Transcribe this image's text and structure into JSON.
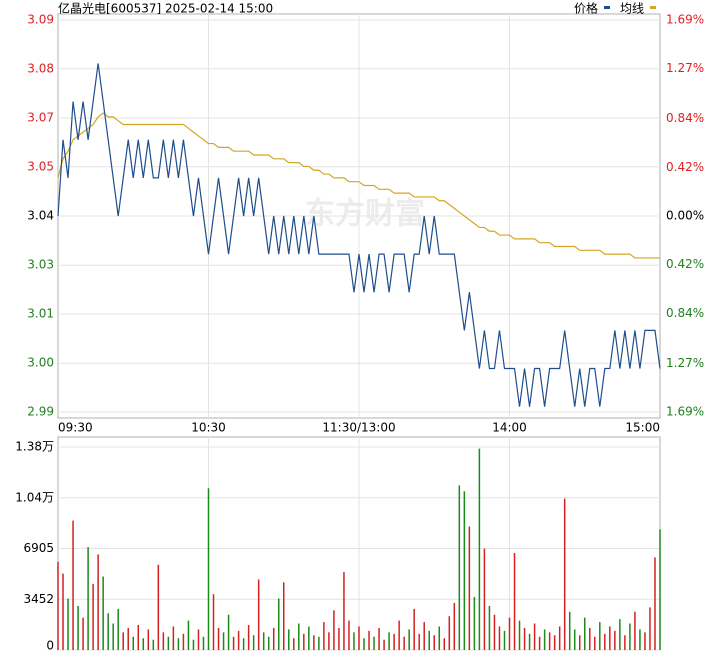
{
  "chart_data": [
    {
      "type": "line",
      "title": "亿晶光电[600537] 2025-02-14 15:00",
      "watermark": "东方财富",
      "xlim": [
        0,
        120
      ],
      "xticks": [
        {
          "value": 0,
          "label": "09:30"
        },
        {
          "value": 30,
          "label": "10:30"
        },
        {
          "value": 60,
          "label": "11:30/13:00"
        },
        {
          "value": 90,
          "label": "14:00"
        },
        {
          "value": 120,
          "label": "15:00"
        }
      ],
      "ylim": [
        2.9886,
        3.0914
      ],
      "yticks": [
        {
          "value": 2.9886,
          "label": "2.99"
        },
        {
          "value": 3.0014,
          "label": "3.00"
        },
        {
          "value": 3.0143,
          "label": "3.01"
        },
        {
          "value": 3.0271,
          "label": "3.03"
        },
        {
          "value": 3.04,
          "label": "3.04"
        },
        {
          "value": 3.0529,
          "label": "3.05"
        },
        {
          "value": 3.0657,
          "label": "3.07"
        },
        {
          "value": 3.0786,
          "label": "3.08"
        },
        {
          "value": 3.0914,
          "label": "3.09"
        }
      ],
      "y2lim": [
        -1.69,
        1.69
      ],
      "y2ticks": [
        {
          "value": -1.69,
          "label": "1.69%"
        },
        {
          "value": -1.27,
          "label": "1.27%"
        },
        {
          "value": -0.84,
          "label": "0.84%"
        },
        {
          "value": -0.42,
          "label": "0.42%"
        },
        {
          "value": 0,
          "label": "0.00%"
        },
        {
          "value": 0.42,
          "label": "0.42%"
        },
        {
          "value": 0.84,
          "label": "0.84%"
        },
        {
          "value": 1.27,
          "label": "1.27%"
        },
        {
          "value": 1.69,
          "label": "1.69%"
        }
      ],
      "up_color": "#e02020",
      "down_color": "#208020",
      "flat_color": "#000000",
      "grid": true,
      "legend": "top-right",
      "series": [
        {
          "name": "价格",
          "color": "#1f4e8c",
          "values": [
            3.04,
            3.06,
            3.05,
            3.07,
            3.06,
            3.07,
            3.06,
            3.07,
            3.08,
            3.07,
            3.06,
            3.05,
            3.04,
            3.05,
            3.06,
            3.05,
            3.06,
            3.05,
            3.06,
            3.05,
            3.05,
            3.06,
            3.05,
            3.06,
            3.05,
            3.06,
            3.05,
            3.04,
            3.05,
            3.04,
            3.03,
            3.04,
            3.05,
            3.04,
            3.03,
            3.04,
            3.05,
            3.04,
            3.05,
            3.04,
            3.05,
            3.04,
            3.03,
            3.04,
            3.03,
            3.04,
            3.03,
            3.04,
            3.03,
            3.04,
            3.03,
            3.04,
            3.03,
            3.03,
            3.03,
            3.03,
            3.03,
            3.03,
            3.03,
            3.02,
            3.03,
            3.02,
            3.03,
            3.02,
            3.03,
            3.03,
            3.02,
            3.03,
            3.03,
            3.03,
            3.02,
            3.03,
            3.03,
            3.04,
            3.03,
            3.04,
            3.03,
            3.03,
            3.03,
            3.03,
            3.02,
            3.01,
            3.02,
            3.01,
            3.0,
            3.01,
            3.0,
            3.0,
            3.01,
            3.0,
            3.0,
            3.0,
            2.99,
            3.0,
            2.99,
            3.0,
            3.0,
            2.99,
            3.0,
            3.0,
            3.0,
            3.01,
            3.0,
            2.99,
            3.0,
            2.99,
            3.0,
            3.0,
            2.99,
            3.0,
            3.0,
            3.01,
            3.0,
            3.01,
            3.0,
            3.01,
            3.0,
            3.01,
            3.01,
            3.01,
            3.0
          ]
        },
        {
          "name": "均线",
          "color": "#d4a520",
          "values": [
            3.05,
            3.055,
            3.057,
            3.06,
            3.061,
            3.062,
            3.063,
            3.064,
            3.066,
            3.067,
            3.066,
            3.066,
            3.065,
            3.064,
            3.064,
            3.064,
            3.064,
            3.064,
            3.064,
            3.064,
            3.064,
            3.064,
            3.064,
            3.064,
            3.064,
            3.064,
            3.063,
            3.062,
            3.061,
            3.06,
            3.059,
            3.059,
            3.058,
            3.058,
            3.058,
            3.057,
            3.057,
            3.057,
            3.057,
            3.056,
            3.056,
            3.056,
            3.056,
            3.055,
            3.055,
            3.055,
            3.054,
            3.054,
            3.054,
            3.053,
            3.053,
            3.052,
            3.052,
            3.051,
            3.051,
            3.05,
            3.05,
            3.05,
            3.049,
            3.049,
            3.049,
            3.048,
            3.048,
            3.048,
            3.047,
            3.047,
            3.047,
            3.046,
            3.046,
            3.046,
            3.046,
            3.045,
            3.045,
            3.045,
            3.045,
            3.045,
            3.044,
            3.044,
            3.043,
            3.042,
            3.041,
            3.04,
            3.039,
            3.038,
            3.037,
            3.037,
            3.036,
            3.036,
            3.035,
            3.035,
            3.035,
            3.034,
            3.034,
            3.034,
            3.034,
            3.034,
            3.033,
            3.033,
            3.033,
            3.032,
            3.032,
            3.032,
            3.032,
            3.032,
            3.031,
            3.031,
            3.031,
            3.031,
            3.031,
            3.03,
            3.03,
            3.03,
            3.03,
            3.03,
            3.03,
            3.029,
            3.029,
            3.029,
            3.029,
            3.029,
            3.029
          ]
        }
      ]
    },
    {
      "type": "bar",
      "xlim": [
        0,
        120
      ],
      "ylim": [
        0,
        13810
      ],
      "yticks": [
        0,
        3452,
        6905,
        {
          "value": 10357,
          "label": "1.04万"
        },
        {
          "value": 13810,
          "label": "1.38万"
        }
      ],
      "up_color": "#d42020",
      "down_color": "#1a8a1a",
      "grid": true,
      "values": [
        6000,
        5200,
        3500,
        8800,
        3000,
        2200,
        7000,
        4500,
        6500,
        5000,
        2500,
        1800,
        2800,
        1200,
        1500,
        900,
        1700,
        800,
        1400,
        700,
        5800,
        1200,
        900,
        1600,
        800,
        1100,
        2000,
        700,
        1400,
        900,
        11000,
        3800,
        1500,
        1200,
        2400,
        900,
        1300,
        800,
        1700,
        1000,
        4800,
        1200,
        900,
        1500,
        3500,
        4600,
        1400,
        800,
        1800,
        1100,
        1600,
        1000,
        900,
        1900,
        1200,
        2700,
        1500,
        5300,
        2000,
        1200,
        1600,
        800,
        1300,
        900,
        1500,
        700,
        1200,
        1100,
        2000,
        900,
        1400,
        2800,
        1100,
        1900,
        1300,
        1000,
        1600,
        800,
        2300,
        3200,
        11200,
        10800,
        8400,
        3600,
        13700,
        6900,
        3000,
        2400,
        1600,
        1300,
        2200,
        6600,
        2000,
        1500,
        1100,
        1800,
        900,
        1400,
        1200,
        1000,
        1600,
        10300,
        2600,
        1400,
        1000,
        2200,
        1500,
        900,
        1900,
        1100,
        1600,
        1300,
        2100,
        1000,
        1800,
        2600,
        1400,
        1200,
        2900,
        6300,
        8200
      ]
    }
  ]
}
